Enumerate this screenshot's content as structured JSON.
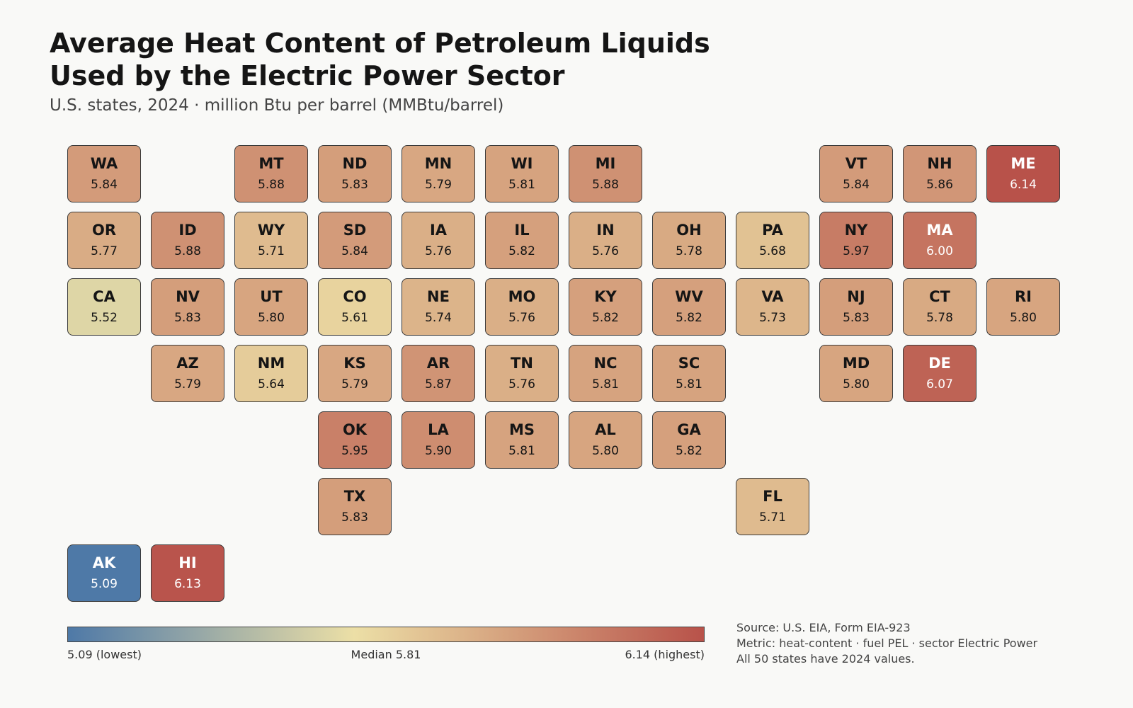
{
  "title": {
    "line1": "Average Heat Content of Petroleum Liquids",
    "line2": "Used by the Electric Power Sector"
  },
  "subtitle": "U.S. states, 2024 · million Btu per barrel (MMBtu/barrel)",
  "colors": {
    "low": "#4e79a7",
    "mid": "#ecdfa6",
    "high": "#b8524a"
  },
  "scale": {
    "min": 5.09,
    "median": 5.81,
    "max": 6.14
  },
  "legend": {
    "low_label": "5.09 (lowest)",
    "mid_label": "Median 5.81",
    "high_label": "6.14 (highest)"
  },
  "notes": {
    "source": "Source: U.S. EIA, Form EIA-923",
    "metric": "Metric: heat-content · fuel PEL · sector Electric Power",
    "coverage": "All 50 states have 2024 values."
  },
  "states": [
    {
      "abbr": "WA",
      "value": 5.84,
      "row": 0,
      "col": 0
    },
    {
      "abbr": "MT",
      "value": 5.88,
      "row": 0,
      "col": 2
    },
    {
      "abbr": "ND",
      "value": 5.83,
      "row": 0,
      "col": 3
    },
    {
      "abbr": "MN",
      "value": 5.79,
      "row": 0,
      "col": 4
    },
    {
      "abbr": "WI",
      "value": 5.81,
      "row": 0,
      "col": 5
    },
    {
      "abbr": "MI",
      "value": 5.88,
      "row": 0,
      "col": 6
    },
    {
      "abbr": "VT",
      "value": 5.84,
      "row": 0,
      "col": 9
    },
    {
      "abbr": "NH",
      "value": 5.86,
      "row": 0,
      "col": 10
    },
    {
      "abbr": "ME",
      "value": 6.14,
      "row": 0,
      "col": 11
    },
    {
      "abbr": "OR",
      "value": 5.77,
      "row": 1,
      "col": 0
    },
    {
      "abbr": "ID",
      "value": 5.88,
      "row": 1,
      "col": 1
    },
    {
      "abbr": "WY",
      "value": 5.71,
      "row": 1,
      "col": 2
    },
    {
      "abbr": "SD",
      "value": 5.84,
      "row": 1,
      "col": 3
    },
    {
      "abbr": "IA",
      "value": 5.76,
      "row": 1,
      "col": 4
    },
    {
      "abbr": "IL",
      "value": 5.82,
      "row": 1,
      "col": 5
    },
    {
      "abbr": "IN",
      "value": 5.76,
      "row": 1,
      "col": 6
    },
    {
      "abbr": "OH",
      "value": 5.78,
      "row": 1,
      "col": 7
    },
    {
      "abbr": "PA",
      "value": 5.68,
      "row": 1,
      "col": 8
    },
    {
      "abbr": "NY",
      "value": 5.97,
      "row": 1,
      "col": 9
    },
    {
      "abbr": "MA",
      "value": 6.0,
      "row": 1,
      "col": 10
    },
    {
      "abbr": "CA",
      "value": 5.52,
      "row": 2,
      "col": 0
    },
    {
      "abbr": "NV",
      "value": 5.83,
      "row": 2,
      "col": 1
    },
    {
      "abbr": "UT",
      "value": 5.8,
      "row": 2,
      "col": 2
    },
    {
      "abbr": "CO",
      "value": 5.61,
      "row": 2,
      "col": 3
    },
    {
      "abbr": "NE",
      "value": 5.74,
      "row": 2,
      "col": 4
    },
    {
      "abbr": "MO",
      "value": 5.76,
      "row": 2,
      "col": 5
    },
    {
      "abbr": "KY",
      "value": 5.82,
      "row": 2,
      "col": 6
    },
    {
      "abbr": "WV",
      "value": 5.82,
      "row": 2,
      "col": 7
    },
    {
      "abbr": "VA",
      "value": 5.73,
      "row": 2,
      "col": 8
    },
    {
      "abbr": "NJ",
      "value": 5.83,
      "row": 2,
      "col": 9
    },
    {
      "abbr": "CT",
      "value": 5.78,
      "row": 2,
      "col": 10
    },
    {
      "abbr": "RI",
      "value": 5.8,
      "row": 2,
      "col": 11
    },
    {
      "abbr": "AZ",
      "value": 5.79,
      "row": 3,
      "col": 1
    },
    {
      "abbr": "NM",
      "value": 5.64,
      "row": 3,
      "col": 2
    },
    {
      "abbr": "KS",
      "value": 5.79,
      "row": 3,
      "col": 3
    },
    {
      "abbr": "AR",
      "value": 5.87,
      "row": 3,
      "col": 4
    },
    {
      "abbr": "TN",
      "value": 5.76,
      "row": 3,
      "col": 5
    },
    {
      "abbr": "NC",
      "value": 5.81,
      "row": 3,
      "col": 6
    },
    {
      "abbr": "SC",
      "value": 5.81,
      "row": 3,
      "col": 7
    },
    {
      "abbr": "MD",
      "value": 5.8,
      "row": 3,
      "col": 9
    },
    {
      "abbr": "DE",
      "value": 6.07,
      "row": 3,
      "col": 10
    },
    {
      "abbr": "OK",
      "value": 5.95,
      "row": 4,
      "col": 3
    },
    {
      "abbr": "LA",
      "value": 5.9,
      "row": 4,
      "col": 4
    },
    {
      "abbr": "MS",
      "value": 5.81,
      "row": 4,
      "col": 5
    },
    {
      "abbr": "AL",
      "value": 5.8,
      "row": 4,
      "col": 6
    },
    {
      "abbr": "GA",
      "value": 5.82,
      "row": 4,
      "col": 7
    },
    {
      "abbr": "TX",
      "value": 5.83,
      "row": 5,
      "col": 3
    },
    {
      "abbr": "FL",
      "value": 5.71,
      "row": 5,
      "col": 8
    },
    {
      "abbr": "AK",
      "value": 5.09,
      "row": 6,
      "col": 0
    },
    {
      "abbr": "HI",
      "value": 6.13,
      "row": 6,
      "col": 1
    }
  ]
}
